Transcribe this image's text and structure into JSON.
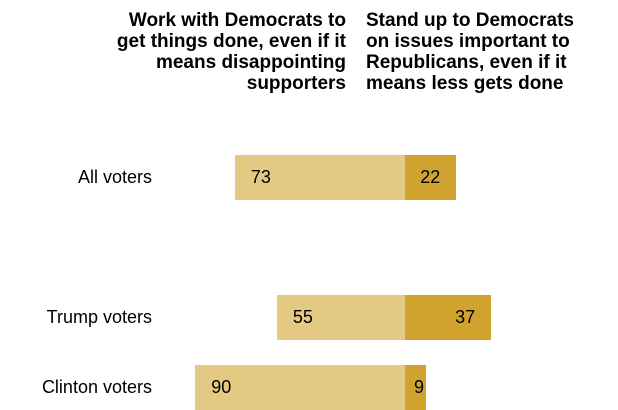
{
  "headers": {
    "left": [
      "Work with Democrats to",
      "get things done, even if it",
      "means disappointing",
      "supporters"
    ],
    "right": [
      "Stand up to Democrats",
      "on issues important to",
      "Republicans, even if it",
      "means less gets done"
    ]
  },
  "chart_data": {
    "type": "bar",
    "orientation": "horizontal-diverging",
    "categories": [
      "All voters",
      "Trump voters",
      "Clinton voters"
    ],
    "series": [
      {
        "values": [
          73,
          55,
          90
        ],
        "color": "#e3c982"
      },
      {
        "values": [
          22,
          37,
          9
        ],
        "color": "#d0a32f"
      }
    ],
    "title": "",
    "xlabel": "",
    "ylabel": ""
  }
}
